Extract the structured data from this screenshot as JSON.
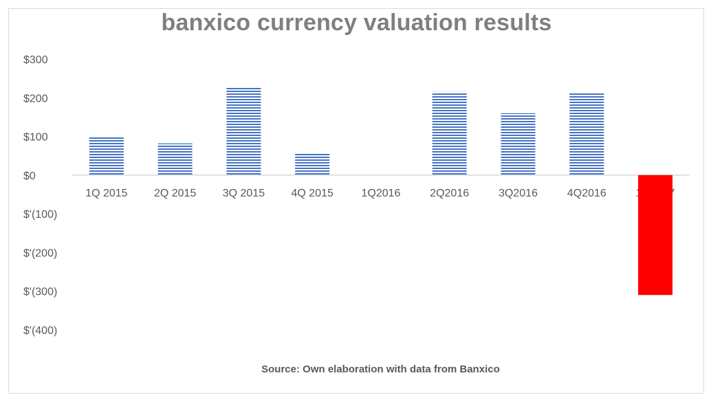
{
  "chart_data": {
    "type": "bar",
    "title": "banxico currency valuation results",
    "source": "Source: Own elaboration with data from Banxico",
    "categories": [
      "1Q 2015",
      "2Q 2015",
      "3Q 2015",
      "4Q 2015",
      "1Q2016",
      "2Q2016",
      "3Q2016",
      "4Q2016",
      "1Q2017"
    ],
    "series": [
      {
        "values": [
          101,
          82,
          228,
          57,
          0,
          215,
          160,
          214,
          -310
        ]
      }
    ],
    "ylim": [
      -400,
      300
    ],
    "yticks": [
      300,
      200,
      100,
      0,
      -100,
      -200,
      -300,
      -400
    ],
    "ytick_labels": [
      "$300",
      "$200",
      "$100",
      "$0",
      "$'(100)",
      "$'(200)",
      "$'(300)",
      "$'(400)"
    ],
    "xlabel": "",
    "ylabel": "",
    "grid": false,
    "colors": {
      "positive_fill": "#4472c4",
      "negative_fill": "#ff0000",
      "title": "#7f7f7f",
      "axis": "#d9d9d9"
    }
  }
}
